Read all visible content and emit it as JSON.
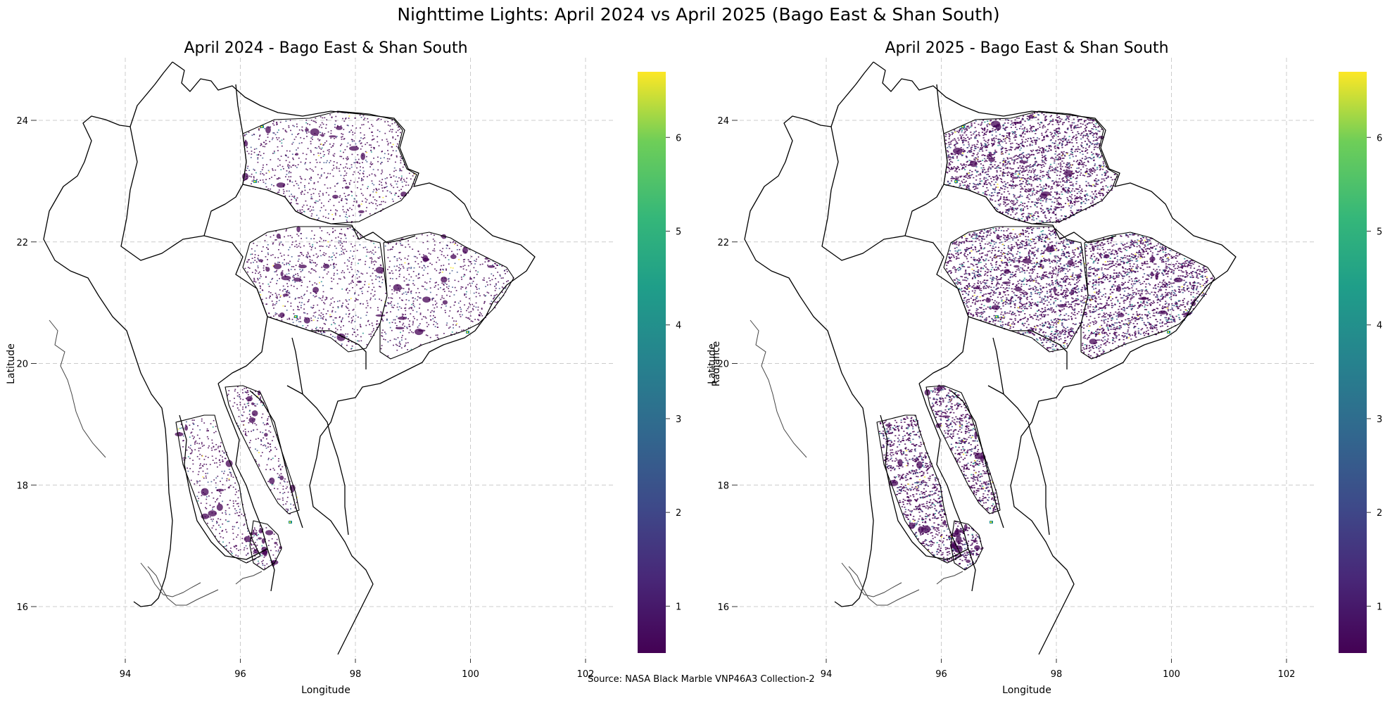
{
  "title": "Nighttime Lights: April 2024 vs April 2025 (Bago East & Shan South)",
  "source": "Source: NASA Black Marble VNP46A3 Collection-2",
  "colors": {
    "grid": "#cccccc",
    "boundary": "#000000",
    "light_low": "#440154",
    "light_mid": "#3b528b",
    "light_high": "#21918c",
    "light_top": "#fde725"
  },
  "panels": [
    {
      "title": "April 2024 - Bago East & Shan South",
      "xlabel": "Longitude",
      "ylabel": "Latitude",
      "colorbar_label": "Radiance",
      "colorbar_ticks": [
        "1",
        "2",
        "3",
        "4",
        "5",
        "6"
      ],
      "x_ticks": [
        "94",
        "96",
        "98",
        "100",
        "102"
      ],
      "y_ticks": [
        "24",
        "22",
        "20",
        "18",
        "16"
      ],
      "intensity": "sparse"
    },
    {
      "title": "April 2025 - Bago East & Shan South",
      "xlabel": "Longitude",
      "ylabel": "Latitude",
      "colorbar_label": "Radiance",
      "colorbar_ticks": [
        "1",
        "2",
        "3",
        "4",
        "5",
        "6"
      ],
      "x_ticks": [
        "94",
        "96",
        "98",
        "100",
        "102"
      ],
      "y_ticks": [
        "24",
        "22",
        "20",
        "18",
        "16"
      ],
      "intensity": "dense"
    }
  ],
  "chart_data": {
    "type": "heatmap",
    "xlim": [
      92.3,
      102.5
    ],
    "ylim": [
      15.0,
      25.0
    ],
    "colorbar_range": [
      0.5,
      6.7
    ],
    "colormap": "viridis",
    "grid": true
  }
}
